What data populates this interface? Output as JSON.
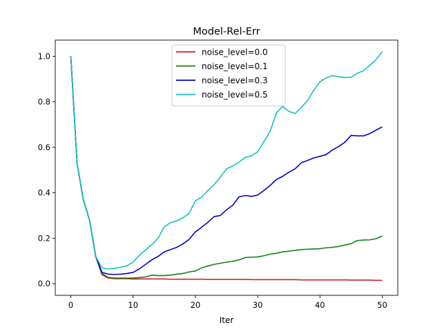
{
  "chart_data": {
    "type": "line",
    "title": "Model-Rel-Err",
    "xlabel": "Iter",
    "ylabel": "",
    "xlim": [
      -2.5,
      52.5
    ],
    "ylim": [
      -0.051,
      1.071
    ],
    "x_ticks": [
      0,
      10,
      20,
      30,
      40,
      50
    ],
    "x_tick_labels": [
      "0",
      "10",
      "20",
      "30",
      "40",
      "50"
    ],
    "y_ticks": [
      0.0,
      0.2,
      0.4,
      0.6,
      0.8,
      1.0
    ],
    "y_tick_labels": [
      "0.0",
      "0.2",
      "0.4",
      "0.6",
      "0.8",
      "1.0"
    ],
    "grid": false,
    "legend_position": "upper center",
    "x": [
      0,
      1,
      2,
      3,
      4,
      5,
      6,
      7,
      8,
      9,
      10,
      11,
      12,
      13,
      14,
      15,
      16,
      17,
      18,
      19,
      20,
      21,
      22,
      23,
      24,
      25,
      26,
      27,
      28,
      29,
      30,
      31,
      32,
      33,
      34,
      35,
      36,
      37,
      38,
      39,
      40,
      41,
      42,
      43,
      44,
      45,
      46,
      47,
      48,
      49,
      50
    ],
    "series": [
      {
        "name": "noise_level=0.0",
        "color": "#d62020",
        "values": [
          1.0,
          0.53,
          0.37,
          0.28,
          0.12,
          0.04,
          0.025,
          0.022,
          0.022,
          0.022,
          0.021,
          0.021,
          0.021,
          0.021,
          0.021,
          0.021,
          0.02,
          0.02,
          0.02,
          0.02,
          0.02,
          0.02,
          0.019,
          0.019,
          0.019,
          0.019,
          0.019,
          0.019,
          0.019,
          0.018,
          0.018,
          0.018,
          0.018,
          0.018,
          0.018,
          0.018,
          0.018,
          0.017,
          0.017,
          0.017,
          0.017,
          0.017,
          0.017,
          0.017,
          0.017,
          0.016,
          0.016,
          0.016,
          0.016,
          0.015,
          0.015
        ]
      },
      {
        "name": "noise_level=0.1",
        "color": "#108010",
        "values": [
          1.0,
          0.53,
          0.37,
          0.28,
          0.12,
          0.045,
          0.028,
          0.025,
          0.025,
          0.025,
          0.025,
          0.027,
          0.03,
          0.038,
          0.036,
          0.036,
          0.038,
          0.042,
          0.045,
          0.052,
          0.056,
          0.07,
          0.078,
          0.085,
          0.09,
          0.095,
          0.099,
          0.105,
          0.115,
          0.117,
          0.118,
          0.123,
          0.13,
          0.134,
          0.14,
          0.143,
          0.147,
          0.15,
          0.152,
          0.153,
          0.154,
          0.158,
          0.16,
          0.164,
          0.17,
          0.176,
          0.19,
          0.192,
          0.193,
          0.198,
          0.21
        ]
      },
      {
        "name": "noise_level=0.3",
        "color": "#0000c8",
        "values": [
          1.0,
          0.53,
          0.37,
          0.28,
          0.12,
          0.05,
          0.042,
          0.041,
          0.042,
          0.045,
          0.05,
          0.065,
          0.085,
          0.105,
          0.12,
          0.14,
          0.15,
          0.16,
          0.175,
          0.195,
          0.228,
          0.248,
          0.27,
          0.295,
          0.3,
          0.325,
          0.345,
          0.382,
          0.388,
          0.384,
          0.39,
          0.41,
          0.432,
          0.458,
          0.472,
          0.49,
          0.505,
          0.532,
          0.542,
          0.553,
          0.56,
          0.568,
          0.588,
          0.603,
          0.622,
          0.652,
          0.65,
          0.65,
          0.66,
          0.675,
          0.69
        ]
      },
      {
        "name": "noise_level=0.5",
        "color": "#10c0c0",
        "values": [
          1.0,
          0.53,
          0.37,
          0.28,
          0.12,
          0.07,
          0.065,
          0.067,
          0.073,
          0.079,
          0.095,
          0.125,
          0.148,
          0.172,
          0.2,
          0.25,
          0.268,
          0.277,
          0.29,
          0.31,
          0.365,
          0.38,
          0.41,
          0.435,
          0.468,
          0.505,
          0.518,
          0.535,
          0.555,
          0.562,
          0.58,
          0.625,
          0.67,
          0.75,
          0.78,
          0.758,
          0.748,
          0.775,
          0.805,
          0.85,
          0.888,
          0.905,
          0.915,
          0.91,
          0.907,
          0.908,
          0.925,
          0.937,
          0.96,
          0.985,
          1.02
        ]
      }
    ]
  }
}
